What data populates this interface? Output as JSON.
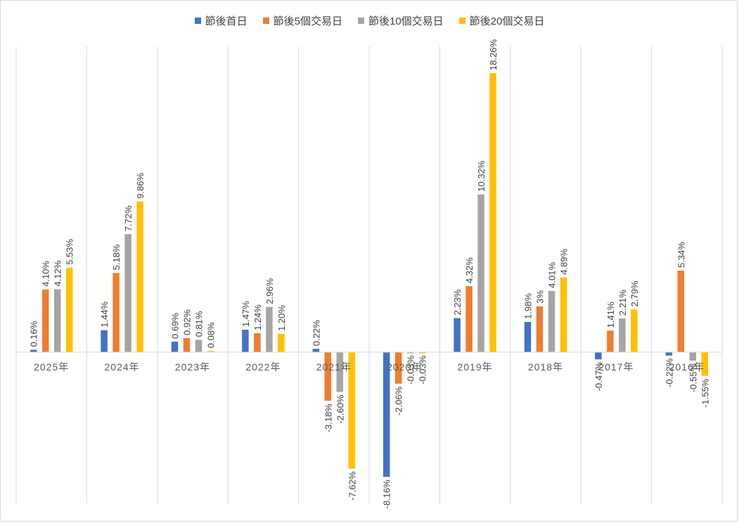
{
  "chart_data": {
    "type": "bar",
    "categories": [
      "2025年",
      "2024年",
      "2023年",
      "2022年",
      "2021年",
      "2020年",
      "2019年",
      "2018年",
      "2017年",
      "2016年"
    ],
    "series": [
      {
        "name": "節後首日",
        "color": "#4472c4",
        "values": [
          0.16,
          1.44,
          0.69,
          1.47,
          0.22,
          -8.16,
          2.23,
          1.98,
          -0.47,
          -0.22
        ],
        "labels": [
          "0.16%",
          "1.44%",
          "0.69%",
          "1.47%",
          "0.22%",
          "-8.16%",
          "2.23%",
          "1.98%",
          "-0.47%",
          "-0.22%"
        ]
      },
      {
        "name": "節後5個交易日",
        "color": "#ed7d31",
        "values": [
          4.1,
          5.18,
          0.92,
          1.24,
          -3.18,
          -2.06,
          4.32,
          3.0,
          1.41,
          5.34
        ],
        "labels": [
          "4.10%",
          "5.18%",
          "0.92%",
          "1.24%",
          "-3.18%",
          "-2.06%",
          "4.32%",
          "3%",
          "1.41%",
          "5.34%"
        ]
      },
      {
        "name": "節後10個交易日",
        "color": "#a5a5a5",
        "values": [
          4.12,
          7.72,
          0.81,
          2.96,
          -2.6,
          -0.03,
          10.32,
          4.01,
          2.21,
          -0.55
        ],
        "labels": [
          "4.12%",
          "7.72%",
          "0.81%",
          "2.96%",
          "-2.60%",
          "-0.03%",
          "10.32%",
          "4.01%",
          "2.21%",
          "-0.55%"
        ]
      },
      {
        "name": "節後20個交易日",
        "color": "#ffc000",
        "values": [
          5.53,
          9.86,
          0.08,
          1.2,
          -7.62,
          -0.03,
          18.26,
          4.89,
          2.79,
          -1.55
        ],
        "labels": [
          "5.53%",
          "9.86%",
          "0.08%",
          "1.20%",
          "-7.62%",
          "-0.03%",
          "18.26%",
          "4.89%",
          "2.79%",
          "-1.55%"
        ]
      }
    ],
    "legend_position": "top",
    "grid": "vertical category separators",
    "title": "",
    "xlabel": "",
    "ylabel": ""
  }
}
